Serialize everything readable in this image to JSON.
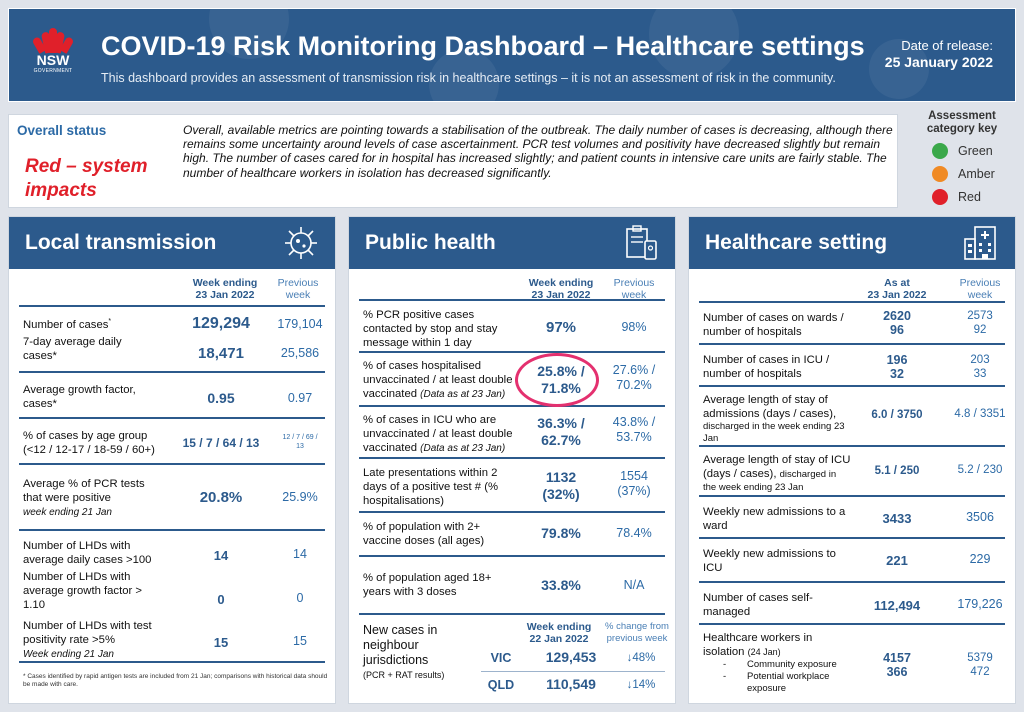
{
  "header": {
    "logo_text": "NSW",
    "logo_sub": "GOVERNMENT",
    "title": "COVID-19 Risk Monitoring Dashboard – Healthcare settings",
    "subtitle": "This dashboard provides an assessment of transmission risk in healthcare settings – it is not an assessment of risk in the community.",
    "release_label": "Date of release:",
    "release_date": "25 January 2022"
  },
  "status": {
    "label": "Overall status",
    "value_line1": "Red – system",
    "value_line2": "impacts",
    "text": "Overall, available metrics are pointing towards a stabilisation of the outbreak.  The daily number of cases is decreasing, although there remains some uncertainty around levels of case ascertainment. PCR test volumes and positivity have decreased slightly but remain high. The number of cases cared for in hospital has increased slightly; and patient counts in intensive care units are fairly stable. The number of healthcare workers in isolation has decreased significantly."
  },
  "key": {
    "title_line1": "Assessment",
    "title_line2": "category key",
    "items": [
      {
        "label": "Green",
        "color": "#3aa84a"
      },
      {
        "label": "Amber",
        "color": "#f08a24"
      },
      {
        "label": "Red",
        "color": "#e0202a"
      }
    ]
  },
  "local": {
    "title": "Local transmission",
    "col1": "Week ending 23 Jan 2022",
    "col1a": "Week ending",
    "col1b": "23 Jan 2022",
    "col2a": "Previous",
    "col2b": "week",
    "rows": {
      "cases": {
        "l1": "Number of cases",
        "sup": "*",
        "v": "129,294",
        "p": "179,104"
      },
      "avg": {
        "l1": "7-day average daily",
        "l2": "cases*",
        "v": "18,471",
        "p": "25,586"
      },
      "growth": {
        "l1": "Average growth factor,",
        "l2": "cases*",
        "v": "0.95",
        "p": "0.97"
      },
      "age": {
        "l1": "% of cases by age group",
        "l2": "(<12 / 12-17 / 18-59 / 60+)",
        "v": "15 / 7 / 64 / 13",
        "p1": "12 / 7 / 69 /",
        "p2": "13"
      },
      "pcr": {
        "l1": "Average % of PCR tests",
        "l2": "that were positive",
        "l3": "week ending 21 Jan",
        "v": "20.8%",
        "p": "25.9%"
      },
      "lhd1": {
        "l1": "Number of LHDs with",
        "l2": "average daily cases >100",
        "v": "14",
        "p": "14"
      },
      "lhd2": {
        "l1": "Number of LHDs with",
        "l2": "average growth factor >",
        "l3": "1.10",
        "v": "0",
        "p": "0"
      },
      "lhd3": {
        "l1": "Number of LHDs with test",
        "l2": "positivity rate >5%",
        "l3": "Week ending 21 Jan",
        "v": "15",
        "p": "15"
      }
    },
    "footnote1": "* Cases identified by rapid antigen tests are included from 21 Jan; comparisons with historical data should",
    "footnote2": "be made with care."
  },
  "public": {
    "title": "Public health",
    "col1a": "Week ending",
    "col1b": "23 Jan 2022",
    "col2a": "Previous",
    "col2b": "week",
    "rows": {
      "pcr": {
        "l1": "% PCR positive cases",
        "l2": "contacted by stop and stay",
        "l3": "message within 1 day",
        "v": "97%",
        "p": "98%"
      },
      "hosp": {
        "l1": "% of cases hospitalised",
        "l2": "unvaccinated / at least double",
        "l3": "vaccinated",
        "note": "(Data as at 23 Jan)",
        "v1": "25.8% /",
        "v2": "71.8%",
        "p1": "27.6% /",
        "p2": "70.2%"
      },
      "icu": {
        "l1": "% of cases in ICU who are",
        "l2": "unvaccinated / at least double",
        "l3": "vaccinated",
        "note": "(Data as at 23 Jan)",
        "v1": "36.3% /",
        "v2": "62.7%",
        "p1": "43.8% /",
        "p2": "53.7%"
      },
      "late": {
        "l1": "Late presentations within 2",
        "l2": "days of a positive test # (%",
        "l3": "hospitalisations)",
        "v1": "1132",
        "v2": "(32%)",
        "p1": "1554",
        "p2": "(37%)"
      },
      "vax2": {
        "l1": "% of population with 2+",
        "l2": "vaccine doses (all ages)",
        "v": "79.8%",
        "p": "78.4%"
      },
      "vax3": {
        "l1": "% of population aged 18+",
        "l2": "years with 3 doses",
        "v": "33.8%",
        "p": "N/A"
      }
    },
    "neigh": {
      "l1": "New cases in",
      "l2": "neighbour",
      "l3": "jurisdictions",
      "l4": "(PCR + RAT results)",
      "h1a": "Week ending",
      "h1b": "22 Jan 2022",
      "h2a": "% change from",
      "h2b": "previous week",
      "rows": [
        {
          "state": "VIC",
          "cases": "129,453",
          "change": "↓48%"
        },
        {
          "state": "QLD",
          "cases": "110,549",
          "change": "↓14%"
        }
      ]
    }
  },
  "health": {
    "title": "Healthcare setting",
    "col1a": "As at",
    "col1b": "23 Jan 2022",
    "col2a": "Previous",
    "col2b": "week",
    "rows": {
      "wards": {
        "l1": "Number of cases on wards /",
        "l2": "number of hospitals",
        "v1": "2620",
        "v2": "96",
        "p1": "2573",
        "p2": "92"
      },
      "icu": {
        "l1": "Number of cases in ICU /",
        "l2": "number of hospitals",
        "v1": "196",
        "v2": "32",
        "p1": "203",
        "p2": "33"
      },
      "los": {
        "l1": "Average length of stay of",
        "l2": "admissions (days / cases),",
        "l3": "discharged in the week ending 23",
        "l4": "Jan",
        "v": "6.0 / 3750",
        "p": "4.8 / 3351"
      },
      "losicu": {
        "l1": "Average length of stay of ICU",
        "l2": "(days / cases),",
        "l2b": "discharged in",
        "l3": "the week ending 23 Jan",
        "v": "5.1 / 250",
        "p": "5.2 / 230"
      },
      "ward_adm": {
        "l1": "Weekly new admissions to a",
        "l2": "ward",
        "v": "3433",
        "p": "3506"
      },
      "icu_adm": {
        "l1": "Weekly new admissions to",
        "l2": "ICU",
        "v": "221",
        "p": "229"
      },
      "self": {
        "l1": "Number of cases self-",
        "l2": "managed",
        "v": "112,494",
        "p": "179,226"
      },
      "hcw": {
        "l1": "Healthcare workers in",
        "l2": "isolation",
        "l2b": "(24 Jan)",
        "b1": "Community exposure",
        "b2a": "Potential workplace",
        "b2b": "exposure",
        "v1": "4157",
        "v2": "366",
        "p1": "5379",
        "p2": "472"
      }
    }
  }
}
